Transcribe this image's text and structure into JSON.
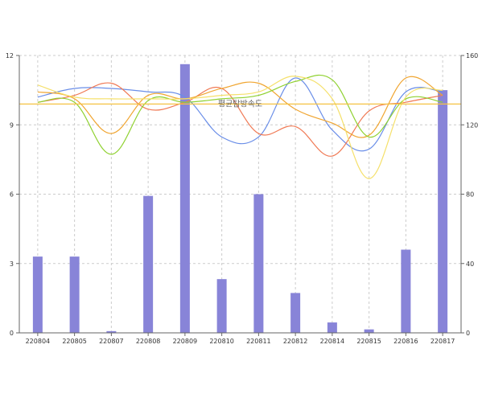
{
  "chart_data": {
    "type": "bar",
    "categories": [
      "220804",
      "220805",
      "220807",
      "220808",
      "220809",
      "220810",
      "220811",
      "220812",
      "220814",
      "220815",
      "220816",
      "220817"
    ],
    "y_left": {
      "min": 0,
      "max": 12,
      "ticks": [
        0,
        3,
        6,
        9,
        12
      ]
    },
    "y_right": {
      "min": 0,
      "max": 160,
      "ticks": [
        0,
        40,
        80,
        120,
        160
      ]
    },
    "bar_series": {
      "axis": "right",
      "color": "#8884d8",
      "values": [
        44,
        44,
        1,
        79,
        155,
        31,
        80,
        23,
        6,
        2,
        48,
        140
      ]
    },
    "line_series": [
      {
        "axis": "right",
        "color": "#6a8ee8",
        "values": [
          136,
          141,
          141,
          139,
          136,
          113,
          113,
          147,
          117,
          106,
          139,
          139
        ]
      },
      {
        "axis": "right",
        "color": "#f07a55",
        "values": [
          133,
          137,
          144,
          129,
          133,
          141,
          115,
          119,
          102,
          128,
          133,
          137
        ]
      },
      {
        "axis": "right",
        "color": "#f0a530",
        "values": [
          139,
          135,
          115,
          137,
          135,
          141,
          144,
          129,
          121,
          114,
          147,
          137
        ]
      },
      {
        "axis": "right",
        "color": "#8fd130",
        "values": [
          133,
          133,
          103,
          134,
          133,
          135,
          137,
          145,
          146,
          113,
          135,
          133
        ]
      },
      {
        "axis": "right",
        "color": "#f5e06a",
        "values": [
          143,
          136,
          135,
          135,
          135,
          137,
          139,
          148,
          135,
          89,
          136,
          140
        ]
      }
    ],
    "reference_line": {
      "axis": "right",
      "value": 132,
      "label": "평균탐방속도",
      "color": "#f5c242"
    },
    "grid": true
  }
}
